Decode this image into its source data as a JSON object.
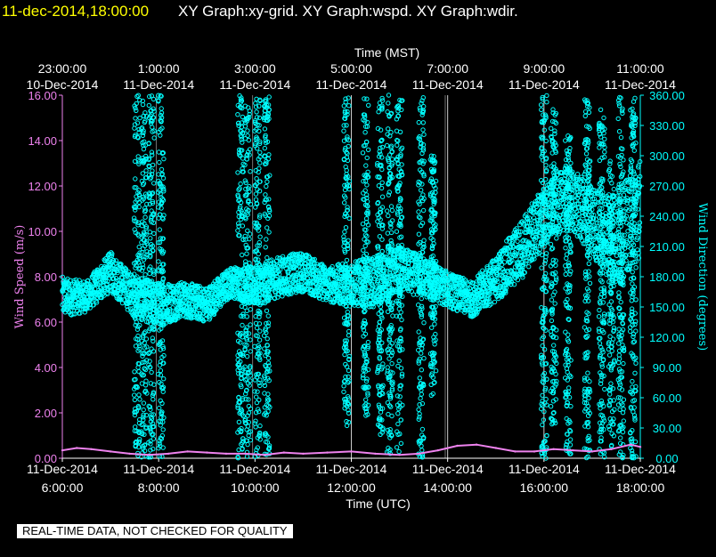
{
  "header": {
    "timestamp": "11-dec-2014,18:00:00",
    "graphs": "XY Graph:xy-grid.  XY Graph:wspd.  XY Graph:wdir."
  },
  "banner": "REAL-TIME DATA, NOT CHECKED FOR QUALITY",
  "colors": {
    "background": "#000000",
    "wind_speed": "#ee82ee",
    "wind_direction": "#00ffff",
    "grid": "#ffffff",
    "header_time": "#ffff00"
  },
  "chart_data": {
    "type": "scatter",
    "top_axis": {
      "label": "Time (MST)",
      "ticks": [
        {
          "time": "23:00:00",
          "date": "10-Dec-2014"
        },
        {
          "time": "1:00:00",
          "date": "11-Dec-2014"
        },
        {
          "time": "3:00:00",
          "date": "11-Dec-2014"
        },
        {
          "time": "5:00:00",
          "date": "11-Dec-2014"
        },
        {
          "time": "7:00:00",
          "date": "11-Dec-2014"
        },
        {
          "time": "9:00:00",
          "date": "11-Dec-2014"
        },
        {
          "time": "11:00:00",
          "date": "11-Dec-2014"
        }
      ]
    },
    "bottom_axis": {
      "label": "Time (UTC)",
      "ticks": [
        {
          "date": "11-Dec-2014",
          "time": "6:00:00"
        },
        {
          "date": "11-Dec-2014",
          "time": "8:00:00"
        },
        {
          "date": "11-Dec-2014",
          "time": "10:00:00"
        },
        {
          "date": "11-Dec-2014",
          "time": "12:00:00"
        },
        {
          "date": "11-Dec-2014",
          "time": "14:00:00"
        },
        {
          "date": "11-Dec-2014",
          "time": "16:00:00"
        },
        {
          "date": "11-Dec-2014",
          "time": "18:00:00"
        }
      ],
      "xlim_hours_utc": [
        6,
        18
      ]
    },
    "left_axis": {
      "label": "Wind Speed (m/s)",
      "ylim": [
        0,
        16
      ],
      "ticks": [
        "0.00",
        "2.00",
        "4.00",
        "6.00",
        "8.00",
        "10.00",
        "12.00",
        "14.00",
        "16.00"
      ]
    },
    "right_axis": {
      "label": "Wind Direction (degrees)",
      "ylim": [
        0,
        360
      ],
      "ticks": [
        "0.00",
        "30.00",
        "60.00",
        "90.00",
        "120.00",
        "150.00",
        "180.00",
        "210.00",
        "240.00",
        "270.00",
        "300.00",
        "330.00",
        "360.00"
      ]
    },
    "grid_vertical_utc_hours": [
      12,
      14,
      16
    ],
    "grid_extra_vertical_utc_hours": [
      10.0,
      14.0
    ],
    "series": [
      {
        "name": "Wind Speed (m/s)",
        "axis": "left",
        "style": "line",
        "points": [
          [
            6.0,
            0.35
          ],
          [
            6.3,
            0.45
          ],
          [
            6.6,
            0.4
          ],
          [
            7.0,
            0.3
          ],
          [
            7.4,
            0.2
          ],
          [
            7.8,
            0.15
          ],
          [
            8.2,
            0.2
          ],
          [
            8.6,
            0.3
          ],
          [
            9.0,
            0.25
          ],
          [
            9.4,
            0.2
          ],
          [
            9.8,
            0.2
          ],
          [
            10.2,
            0.15
          ],
          [
            10.6,
            0.25
          ],
          [
            11.0,
            0.2
          ],
          [
            11.5,
            0.25
          ],
          [
            12.0,
            0.3
          ],
          [
            12.5,
            0.2
          ],
          [
            13.0,
            0.15
          ],
          [
            13.4,
            0.2
          ],
          [
            13.8,
            0.35
          ],
          [
            14.2,
            0.55
          ],
          [
            14.6,
            0.6
          ],
          [
            15.0,
            0.45
          ],
          [
            15.4,
            0.3
          ],
          [
            15.8,
            0.3
          ],
          [
            16.2,
            0.4
          ],
          [
            16.6,
            0.35
          ],
          [
            17.0,
            0.3
          ],
          [
            17.4,
            0.4
          ],
          [
            17.8,
            0.6
          ],
          [
            18.0,
            0.5
          ]
        ]
      },
      {
        "name": "Wind Direction (degrees)",
        "axis": "right",
        "style": "markers",
        "band": [
          [
            6.0,
            140,
            180
          ],
          [
            6.5,
            145,
            175
          ],
          [
            7.0,
            165,
            205
          ],
          [
            7.5,
            140,
            180
          ],
          [
            8.0,
            130,
            175
          ],
          [
            8.5,
            140,
            175
          ],
          [
            9.0,
            135,
            170
          ],
          [
            9.5,
            160,
            190
          ],
          [
            10.0,
            150,
            190
          ],
          [
            10.5,
            160,
            200
          ],
          [
            11.0,
            165,
            205
          ],
          [
            11.5,
            155,
            190
          ],
          [
            12.0,
            150,
            195
          ],
          [
            12.5,
            150,
            200
          ],
          [
            13.0,
            165,
            210
          ],
          [
            13.5,
            160,
            200
          ],
          [
            14.0,
            150,
            185
          ],
          [
            14.5,
            140,
            175
          ],
          [
            15.0,
            155,
            200
          ],
          [
            15.5,
            175,
            235
          ],
          [
            16.0,
            210,
            270
          ],
          [
            16.5,
            230,
            290
          ],
          [
            17.0,
            200,
            270
          ],
          [
            17.5,
            170,
            260
          ],
          [
            18.0,
            200,
            300
          ]
        ],
        "bursts": [
          [
            7.55,
            0,
            360
          ],
          [
            7.7,
            0,
            360
          ],
          [
            7.85,
            0,
            360
          ],
          [
            8.05,
            0,
            360
          ],
          [
            9.7,
            0,
            360
          ],
          [
            9.85,
            0,
            350
          ],
          [
            10.05,
            0,
            360
          ],
          [
            10.25,
            0,
            360
          ],
          [
            11.9,
            30,
            360
          ],
          [
            12.3,
            40,
            360
          ],
          [
            12.6,
            20,
            360
          ],
          [
            12.8,
            0,
            360
          ],
          [
            13.0,
            0,
            360
          ],
          [
            13.45,
            0,
            360
          ],
          [
            13.7,
            60,
            300
          ],
          [
            16.0,
            0,
            360
          ],
          [
            16.2,
            30,
            350
          ],
          [
            16.5,
            0,
            320
          ],
          [
            16.9,
            0,
            360
          ],
          [
            17.2,
            0,
            360
          ],
          [
            17.4,
            0,
            300
          ],
          [
            17.6,
            0,
            360
          ],
          [
            17.85,
            0,
            360
          ]
        ]
      }
    ]
  }
}
